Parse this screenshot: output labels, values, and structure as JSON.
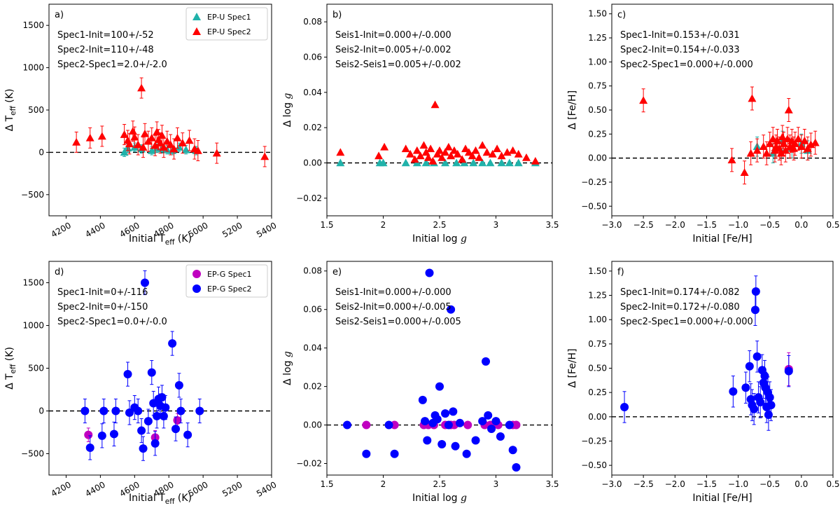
{
  "chart_data": [
    {
      "panel": "a",
      "type": "scatter",
      "panel_label": "a)",
      "xlabel": "Initial T_eff (K)",
      "ylabel": "Δ T_eff (K)",
      "xlim": [
        4100,
        5400
      ],
      "ylim": [
        -750,
        1750
      ],
      "xticks": [
        4200,
        4400,
        4600,
        4800,
        5000,
        5200,
        5400
      ],
      "yticks": [
        -500,
        0,
        500,
        1000,
        1500
      ],
      "rotate_xticks": true,
      "legend": {
        "position": "top-right",
        "entries": [
          {
            "label": "EP-U Spec1",
            "color": "#20b2aa",
            "marker": "triangle"
          },
          {
            "label": "EP-U Spec2",
            "color": "#ff0000",
            "marker": "triangle"
          }
        ]
      },
      "annotations": [
        "Spec1-Init=100+/-52",
        "Spec2-Init=110+/-48",
        "Spec2-Spec1=2.0+/-2.0"
      ],
      "series": [
        {
          "name": "EP-U Spec1",
          "color": "#20b2aa",
          "marker": "triangle",
          "x": [
            4540,
            4560,
            4600,
            4640,
            4700,
            4730,
            4760,
            4790,
            4820,
            4860,
            4900,
            4960
          ],
          "y": [
            0,
            50,
            60,
            40,
            20,
            50,
            40,
            30,
            20,
            60,
            30,
            20
          ],
          "err": 50
        },
        {
          "name": "EP-U Spec2",
          "color": "#ff0000",
          "marker": "triangle",
          "x": [
            4260,
            4340,
            4410,
            4540,
            4560,
            4570,
            4590,
            4600,
            4620,
            4640,
            4650,
            4660,
            4680,
            4700,
            4720,
            4730,
            4740,
            4750,
            4760,
            4770,
            4790,
            4810,
            4830,
            4850,
            4880,
            4920,
            4950,
            4970,
            5080,
            5360
          ],
          "y": [
            120,
            170,
            190,
            210,
            140,
            100,
            250,
            180,
            90,
            760,
            60,
            220,
            130,
            170,
            80,
            240,
            150,
            110,
            200,
            60,
            130,
            90,
            40,
            170,
            110,
            140,
            40,
            20,
            -10,
            -50
          ],
          "err": 120
        }
      ]
    },
    {
      "panel": "b",
      "type": "scatter",
      "panel_label": "b)",
      "xlabel": "Initial log g",
      "ylabel": "Δ log g",
      "xlim": [
        1.5,
        3.5
      ],
      "ylim": [
        -0.03,
        0.09
      ],
      "xticks": [
        1.5,
        2.0,
        2.5,
        3.0,
        3.5
      ],
      "yticks": [
        -0.02,
        0.0,
        0.02,
        0.04,
        0.06,
        0.08
      ],
      "ytick_labels": [
        "−0.02",
        "0.00",
        "0.02",
        "0.04",
        "0.06",
        "0.08"
      ],
      "annotations": [
        "Seis1-Init=0.000+/-0.000",
        "Seis2-Init=0.005+/-0.002",
        "Seis2-Seis1=0.005+/-0.002"
      ],
      "series": [
        {
          "name": "EP-U Spec1",
          "color": "#20b2aa",
          "marker": "triangle",
          "x": [
            1.62,
            1.97,
            2.0,
            2.2,
            2.3,
            2.38,
            2.45,
            2.55,
            2.65,
            2.72,
            2.8,
            2.88,
            2.95,
            3.05,
            3.12,
            3.2,
            3.35
          ],
          "y": [
            0,
            0,
            0,
            0,
            0,
            0,
            0,
            0,
            0,
            0,
            0,
            0,
            0,
            0,
            0,
            0,
            0
          ],
          "err": 0
        },
        {
          "name": "EP-U Spec2",
          "color": "#ff0000",
          "marker": "triangle",
          "x": [
            1.62,
            1.96,
            2.01,
            2.2,
            2.24,
            2.28,
            2.3,
            2.33,
            2.36,
            2.38,
            2.4,
            2.42,
            2.44,
            2.46,
            2.48,
            2.5,
            2.52,
            2.55,
            2.58,
            2.6,
            2.63,
            2.66,
            2.7,
            2.73,
            2.76,
            2.79,
            2.82,
            2.85,
            2.88,
            2.92,
            2.97,
            3.01,
            3.05,
            3.1,
            3.15,
            3.2,
            3.27,
            3.35
          ],
          "y": [
            0.006,
            0.004,
            0.009,
            0.008,
            0.005,
            0.002,
            0.007,
            0.004,
            0.01,
            0.006,
            0.003,
            0.008,
            0.001,
            0.033,
            0.005,
            0.007,
            0.003,
            0.006,
            0.009,
            0.004,
            0.007,
            0.005,
            0.002,
            0.008,
            0.006,
            0.004,
            0.007,
            0.003,
            0.01,
            0.006,
            0.005,
            0.008,
            0.004,
            0.006,
            0.007,
            0.005,
            0.003,
            0.001
          ],
          "err": 0
        }
      ]
    },
    {
      "panel": "c",
      "type": "scatter",
      "panel_label": "c)",
      "xlabel": "Initial [Fe/H]",
      "ylabel": "Δ [Fe/H]",
      "xlim": [
        -3.0,
        0.5
      ],
      "ylim": [
        -0.6,
        1.6
      ],
      "xticks": [
        -3.0,
        -2.5,
        -2.0,
        -1.5,
        -1.0,
        -0.5,
        0.0,
        0.5
      ],
      "xtick_labels": [
        "−3.0",
        "−2.5",
        "−2.0",
        "−1.5",
        "−1.0",
        "−0.5",
        "0.0",
        "0.5"
      ],
      "yticks": [
        -0.5,
        -0.25,
        0.0,
        0.25,
        0.5,
        0.75,
        1.0,
        1.25,
        1.5
      ],
      "ytick_labels": [
        "−0.50",
        "−0.25",
        "0.00",
        "0.25",
        "0.50",
        "0.75",
        "1.00",
        "1.25",
        "1.50"
      ],
      "annotations": [
        "Spec1-Init=0.153+/-0.031",
        "Spec2-Init=0.154+/-0.033",
        "Spec2-Spec1=0.000+/-0.000"
      ],
      "series": [
        {
          "name": "EP-U Spec1",
          "color": "#20b2aa",
          "marker": "triangle",
          "x": [
            -0.7,
            -0.45,
            -0.3,
            -0.15,
            0.0,
            0.1
          ],
          "y": [
            0.12,
            0.05,
            0.18,
            0.1,
            0.15,
            0.08
          ],
          "err": 0.1
        },
        {
          "name": "EP-U Spec2",
          "color": "#ff0000",
          "marker": "triangle",
          "x": [
            -2.5,
            -1.1,
            -0.9,
            -0.8,
            -0.78,
            -0.7,
            -0.6,
            -0.55,
            -0.5,
            -0.45,
            -0.42,
            -0.4,
            -0.38,
            -0.35,
            -0.32,
            -0.3,
            -0.28,
            -0.25,
            -0.22,
            -0.2,
            -0.18,
            -0.15,
            -0.12,
            -0.1,
            -0.05,
            0.0,
            0.05,
            0.1,
            0.15,
            0.22
          ],
          "y": [
            0.6,
            -0.02,
            -0.15,
            0.05,
            0.62,
            0.08,
            0.12,
            0.05,
            0.15,
            0.2,
            0.08,
            0.12,
            0.18,
            0.1,
            0.05,
            0.22,
            0.15,
            0.08,
            0.2,
            0.5,
            0.12,
            0.18,
            0.1,
            0.15,
            0.2,
            0.12,
            0.18,
            0.1,
            0.14,
            0.16
          ],
          "err": 0.12
        }
      ]
    },
    {
      "panel": "d",
      "type": "scatter",
      "panel_label": "d)",
      "xlabel": "Initial T_eff (K)",
      "ylabel": "Δ T_eff (K)",
      "xlim": [
        4100,
        5400
      ],
      "ylim": [
        -750,
        1750
      ],
      "xticks": [
        4200,
        4400,
        4600,
        4800,
        5000,
        5200,
        5400
      ],
      "yticks": [
        -500,
        0,
        500,
        1000,
        1500
      ],
      "rotate_xticks": true,
      "legend": {
        "position": "top-right",
        "entries": [
          {
            "label": "EP-G Spec1",
            "color": "#c000c0",
            "marker": "circle"
          },
          {
            "label": "EP-G Spec2",
            "color": "#0000ff",
            "marker": "circle"
          }
        ]
      },
      "annotations": [
        "Spec1-Init=0+/-116",
        "Spec2-Init=0+/-150",
        "Spec2-Spec1=0.0+/-0.0"
      ],
      "series": [
        {
          "name": "EP-G Spec1",
          "color": "#c000c0",
          "marker": "circle",
          "x": [
            4330,
            4720,
            4850
          ],
          "y": [
            -280,
            -310,
            -110
          ],
          "err": 80
        },
        {
          "name": "EP-G Spec2",
          "color": "#0000ff",
          "marker": "circle",
          "x": [
            4310,
            4340,
            4410,
            4420,
            4480,
            4490,
            4560,
            4570,
            4600,
            4620,
            4640,
            4650,
            4660,
            4680,
            4700,
            4710,
            4720,
            4730,
            4740,
            4750,
            4760,
            4770,
            4780,
            4820,
            4840,
            4860,
            4870,
            4910,
            4980
          ],
          "y": [
            0,
            -430,
            -290,
            0,
            -270,
            0,
            430,
            -20,
            40,
            0,
            -230,
            -440,
            1500,
            -120,
            450,
            90,
            -380,
            -60,
            140,
            60,
            160,
            -60,
            40,
            790,
            -210,
            300,
            0,
            -280,
            0
          ],
          "err": 140
        }
      ]
    },
    {
      "panel": "e",
      "type": "scatter",
      "panel_label": "e)",
      "xlabel": "Initial log g",
      "ylabel": "Δ log g",
      "xlim": [
        1.5,
        3.5
      ],
      "ylim": [
        -0.026,
        0.085
      ],
      "xticks": [
        1.5,
        2.0,
        2.5,
        3.0,
        3.5
      ],
      "yticks": [
        -0.02,
        0.0,
        0.02,
        0.04,
        0.06,
        0.08
      ],
      "ytick_labels": [
        "−0.02",
        "0.00",
        "0.02",
        "0.04",
        "0.06",
        "0.08"
      ],
      "annotations": [
        "Seis1-Init=0.000+/-0.000",
        "Seis2-Init=0.000+/-0.005",
        "Seis2-Seis1=0.000+/-0.005"
      ],
      "series": [
        {
          "name": "EP-G Spec1",
          "color": "#c000c0",
          "marker": "circle",
          "x": [
            1.85,
            2.1,
            2.36,
            2.4,
            2.45,
            2.55,
            2.6,
            2.63,
            2.75,
            2.9,
            2.95,
            3.02,
            3.15,
            3.18
          ],
          "y": [
            0,
            0,
            0,
            0,
            0,
            0,
            0,
            0,
            0,
            0,
            0,
            0,
            0,
            0
          ],
          "err": 0
        },
        {
          "name": "EP-G Spec2",
          "color": "#0000ff",
          "marker": "circle",
          "x": [
            1.68,
            1.85,
            2.05,
            2.1,
            2.35,
            2.37,
            2.39,
            2.41,
            2.44,
            2.46,
            2.48,
            2.5,
            2.52,
            2.55,
            2.58,
            2.6,
            2.62,
            2.64,
            2.68,
            2.74,
            2.82,
            2.88,
            2.91,
            2.93,
            2.96,
            3.0,
            3.04,
            3.12,
            3.15,
            3.18
          ],
          "y": [
            0,
            -0.015,
            0,
            -0.015,
            0.013,
            0.002,
            -0.008,
            0.079,
            0.001,
            0.005,
            0.003,
            0.02,
            -0.01,
            0.006,
            0,
            0.06,
            0.007,
            -0.011,
            0.001,
            -0.015,
            -0.008,
            0.002,
            0.033,
            0.005,
            -0.002,
            0.002,
            -0.006,
            0,
            -0.013,
            -0.022
          ],
          "err": 0
        }
      ]
    },
    {
      "panel": "f",
      "type": "scatter",
      "panel_label": "f)",
      "xlabel": "Initial [Fe/H]",
      "ylabel": "Δ [Fe/H]",
      "xlim": [
        -3.0,
        0.5
      ],
      "ylim": [
        -0.6,
        1.6
      ],
      "xticks": [
        -3.0,
        -2.5,
        -2.0,
        -1.5,
        -1.0,
        -0.5,
        0.0,
        0.5
      ],
      "xtick_labels": [
        "−3.0",
        "−2.5",
        "−2.0",
        "−1.5",
        "−1.0",
        "−0.5",
        "0.0",
        "0.5"
      ],
      "yticks": [
        -0.5,
        -0.25,
        0.0,
        0.25,
        0.5,
        0.75,
        1.0,
        1.25,
        1.5
      ],
      "ytick_labels": [
        "−0.50",
        "−0.25",
        "0.00",
        "0.25",
        "0.50",
        "0.75",
        "1.00",
        "1.25",
        "1.50"
      ],
      "annotations": [
        "Spec1-Init=0.174+/-0.082",
        "Spec2-Init=0.172+/-0.080",
        "Spec2-Spec1=0.000+/-0.000"
      ],
      "series": [
        {
          "name": "EP-G Spec1",
          "color": "#c000c0",
          "marker": "circle",
          "x": [
            -0.2
          ],
          "y": [
            0.49
          ],
          "err": 0.17
        },
        {
          "name": "EP-G Spec2",
          "color": "#0000ff",
          "marker": "circle",
          "x": [
            -2.8,
            -1.08,
            -0.88,
            -0.82,
            -0.8,
            -0.78,
            -0.75,
            -0.73,
            -0.72,
            -0.7,
            -0.68,
            -0.65,
            -0.62,
            -0.6,
            -0.58,
            -0.57,
            -0.55,
            -0.53,
            -0.52,
            -0.5,
            -0.48,
            -0.2
          ],
          "y": [
            0.1,
            0.26,
            0.3,
            0.52,
            0.18,
            0.12,
            0.08,
            1.1,
            1.29,
            0.62,
            0.2,
            0.15,
            0.48,
            0.35,
            0.42,
            0.3,
            0.1,
            0.25,
            0.02,
            0.2,
            0.12,
            0.47
          ],
          "err": 0.16
        }
      ]
    }
  ]
}
